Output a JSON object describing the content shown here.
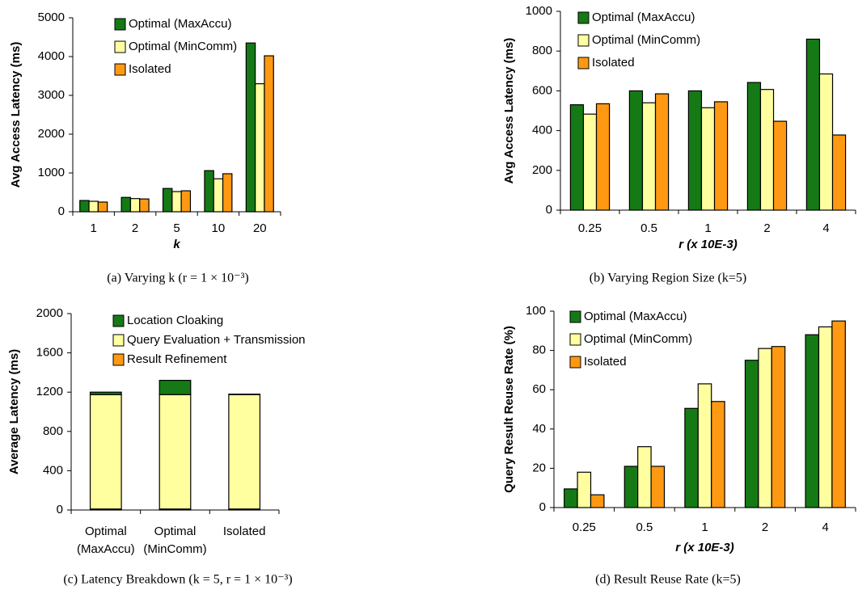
{
  "chart_data": [
    {
      "type": "bar",
      "caption": "(a) Varying k (r = 1 × 10⁻³)",
      "x_label": "k",
      "y_label": "Avg Access Latency (ms)",
      "categories": [
        "1",
        "2",
        "5",
        "10",
        "20"
      ],
      "series": [
        {
          "name": "Optimal (MaxAccu)",
          "color": "#157a15",
          "values": [
            290,
            370,
            600,
            1060,
            4350
          ]
        },
        {
          "name": "Optimal (MinComm)",
          "color": "#ffffa0",
          "values": [
            270,
            340,
            520,
            850,
            3300
          ]
        },
        {
          "name": "Isolated",
          "color": "#ff9912",
          "values": [
            250,
            330,
            540,
            980,
            4020
          ]
        }
      ],
      "ylim": [
        0,
        5000
      ],
      "yticks": [
        0,
        1000,
        2000,
        3000,
        4000,
        5000
      ],
      "grid": false,
      "legend": "upper left"
    },
    {
      "type": "bar",
      "caption": "(b) Varying Region Size (k=5)",
      "x_label": "r (x 10E-3)",
      "y_label": "Avg Access Latency (ms)",
      "categories": [
        "0.25",
        "0.5",
        "1",
        "2",
        "4"
      ],
      "series": [
        {
          "name": "Optimal (MaxAccu)",
          "color": "#157a15",
          "values": [
            530,
            600,
            600,
            642,
            860
          ]
        },
        {
          "name": "Optimal (MinComm)",
          "color": "#ffffa0",
          "values": [
            483,
            540,
            515,
            607,
            685
          ]
        },
        {
          "name": "Isolated",
          "color": "#ff9912",
          "values": [
            535,
            585,
            545,
            447,
            378
          ]
        }
      ],
      "ylim": [
        0,
        1000
      ],
      "yticks": [
        0,
        200,
        400,
        600,
        800,
        1000
      ],
      "grid": false,
      "legend": "upper left"
    },
    {
      "type": "stacked-bar",
      "caption": "(c) Latency Breakdown (k = 5, r = 1 × 10⁻³)",
      "y_label": "Average Latency (ms)",
      "categories": [
        [
          "Optimal",
          "(MaxAccu)"
        ],
        [
          "Optimal",
          "(MinComm)"
        ],
        [
          "Isolated"
        ]
      ],
      "series": [
        {
          "name": "Location Cloaking",
          "color": "#157a15",
          "values": [
            25,
            145,
            5
          ]
        },
        {
          "name": "Query Evaluation + Transmission",
          "color": "#ffffa0",
          "values": [
            1165,
            1165,
            1165
          ]
        },
        {
          "name": "Result Refinement",
          "color": "#ff9912",
          "values": [
            10,
            10,
            10
          ]
        }
      ],
      "ylim": [
        0,
        2000
      ],
      "yticks": [
        0,
        400,
        800,
        1200,
        1600,
        2000
      ],
      "grid": false,
      "legend": "upper left"
    },
    {
      "type": "bar",
      "caption": "(d) Result Reuse Rate (k=5)",
      "x_label": "r (x 10E-3)",
      "y_label": "Query Result Reuse Rate (%)",
      "categories": [
        "0.25",
        "0.5",
        "1",
        "2",
        "4"
      ],
      "series": [
        {
          "name": "Optimal (MaxAccu)",
          "color": "#157a15",
          "values": [
            9.5,
            21,
            50.5,
            75,
            88
          ]
        },
        {
          "name": "Optimal (MinComm)",
          "color": "#ffffa0",
          "values": [
            18,
            31,
            63,
            81,
            92
          ]
        },
        {
          "name": "Isolated",
          "color": "#ff9912",
          "values": [
            6.5,
            21,
            54,
            82,
            95
          ]
        }
      ],
      "ylim": [
        0,
        100
      ],
      "yticks": [
        0,
        20,
        40,
        60,
        80,
        100
      ],
      "grid": false,
      "legend": "upper left"
    }
  ]
}
